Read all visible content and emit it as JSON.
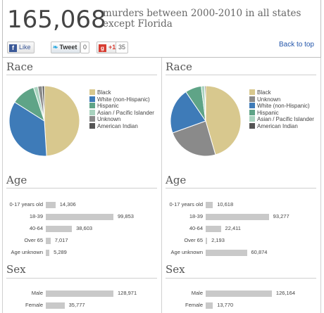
{
  "header": {
    "total": "165,068",
    "headline": "murders between 2000-2010 in all states except Florida",
    "like_label": "Like",
    "tweet_label": "Tweet",
    "tweet_count": "0",
    "gplus_label": "+1",
    "gplus_count": "35",
    "back_to_top": "Back to top"
  },
  "sections": {
    "race": "Race",
    "age": "Age",
    "sex": "Sex"
  },
  "colors": {
    "Black": "#d8c88e",
    "White (non-Hispanic)": "#3e7bb8",
    "Hispanic": "#5fa487",
    "Asian / Pacific Islander": "#a9d3bf",
    "Unknown": "#8a8a8a",
    "American Indian": "#555555"
  },
  "chart_data": [
    {
      "type": "pie",
      "id": "race-left",
      "categories": [
        "Black",
        "White (non-Hispanic)",
        "Hispanic",
        "Asian / Pacific Islander",
        "Unknown",
        "American Indian"
      ],
      "values": [
        49,
        35,
        11,
        2,
        2,
        1
      ]
    },
    {
      "type": "pie",
      "id": "race-right",
      "categories": [
        "Black",
        "Unknown",
        "White (non-Hispanic)",
        "Hispanic",
        "Asian / Pacific Islander",
        "American Indian"
      ],
      "values": [
        45.5,
        24,
        21,
        7.5,
        1.5,
        0.5
      ]
    },
    {
      "type": "bar",
      "id": "age-left",
      "categories": [
        "0-17 years old",
        "18-39",
        "40-64",
        "Over 65",
        "Age unknown"
      ],
      "values": [
        14306,
        99853,
        38603,
        7017,
        5289
      ],
      "labels": [
        "14,306",
        "99,853",
        "38,603",
        "7,017",
        "5,289"
      ]
    },
    {
      "type": "bar",
      "id": "age-right",
      "categories": [
        "0-17 years old",
        "18-39",
        "40-64",
        "Over 65",
        "Age unknown"
      ],
      "values": [
        10618,
        93277,
        22411,
        2193,
        60874
      ],
      "labels": [
        "10,618",
        "93,277",
        "22,411",
        "2,193",
        "60,874"
      ]
    },
    {
      "type": "bar",
      "id": "sex-left",
      "categories": [
        "Male",
        "Female"
      ],
      "values": [
        128971,
        35777
      ],
      "labels": [
        "128,971",
        "35,777"
      ]
    },
    {
      "type": "bar",
      "id": "sex-right",
      "categories": [
        "Male",
        "Female"
      ],
      "values": [
        126164,
        13770
      ],
      "labels": [
        "126,164",
        "13,770"
      ]
    }
  ]
}
